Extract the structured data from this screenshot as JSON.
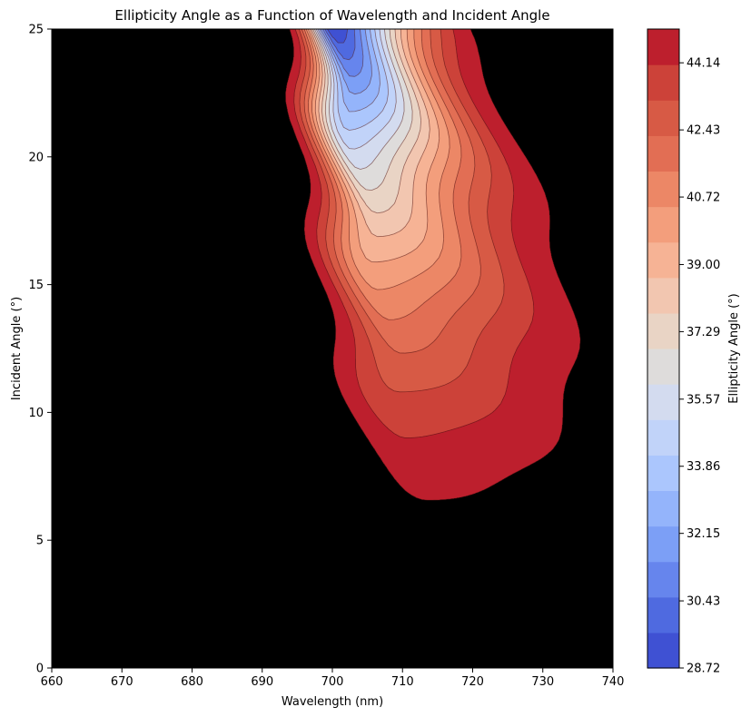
{
  "chart_data": {
    "type": "contour",
    "title": "Ellipticity Angle as a Function of Wavelength and Incident Angle",
    "xlabel": "Wavelength (nm)",
    "ylabel": "Incident Angle (°)",
    "colorbar_label": "Ellipticity Angle (°)",
    "colormap": "coolwarm",
    "xlim": [
      660,
      740
    ],
    "ylim": [
      0,
      25
    ],
    "x_ticks": [
      "660",
      "670",
      "680",
      "690",
      "700",
      "710",
      "720",
      "730",
      "740"
    ],
    "y_ticks": [
      "0",
      "5",
      "10",
      "15",
      "20",
      "25"
    ],
    "levels": [
      28.72,
      29.58,
      30.43,
      31.29,
      32.15,
      33.0,
      33.86,
      34.71,
      35.57,
      36.43,
      37.29,
      38.14,
      39.0,
      39.86,
      40.72,
      41.57,
      42.43,
      43.28,
      44.14,
      45.0
    ],
    "colorbar_ticks": [
      "28.72",
      "30.43",
      "32.15",
      "33.86",
      "35.57",
      "37.29",
      "39.00",
      "40.72",
      "42.43",
      "44.14"
    ],
    "level_colors": [
      "#3f51d3",
      "#4f6ae0",
      "#6685ed",
      "#7c9ff6",
      "#94b4fb",
      "#abc6fd",
      "#c1d3f9",
      "#d3dbef",
      "#dedcdb",
      "#e9d4c5",
      "#f2c6b0",
      "#f6b395",
      "#f39e7c",
      "#ec8766",
      "#e26e54",
      "#d75a45",
      "#cc4239",
      "#bd1f2d"
    ],
    "minimum": {
      "wavelength": 701,
      "incident_angle": 25,
      "value": 28.72
    }
  }
}
